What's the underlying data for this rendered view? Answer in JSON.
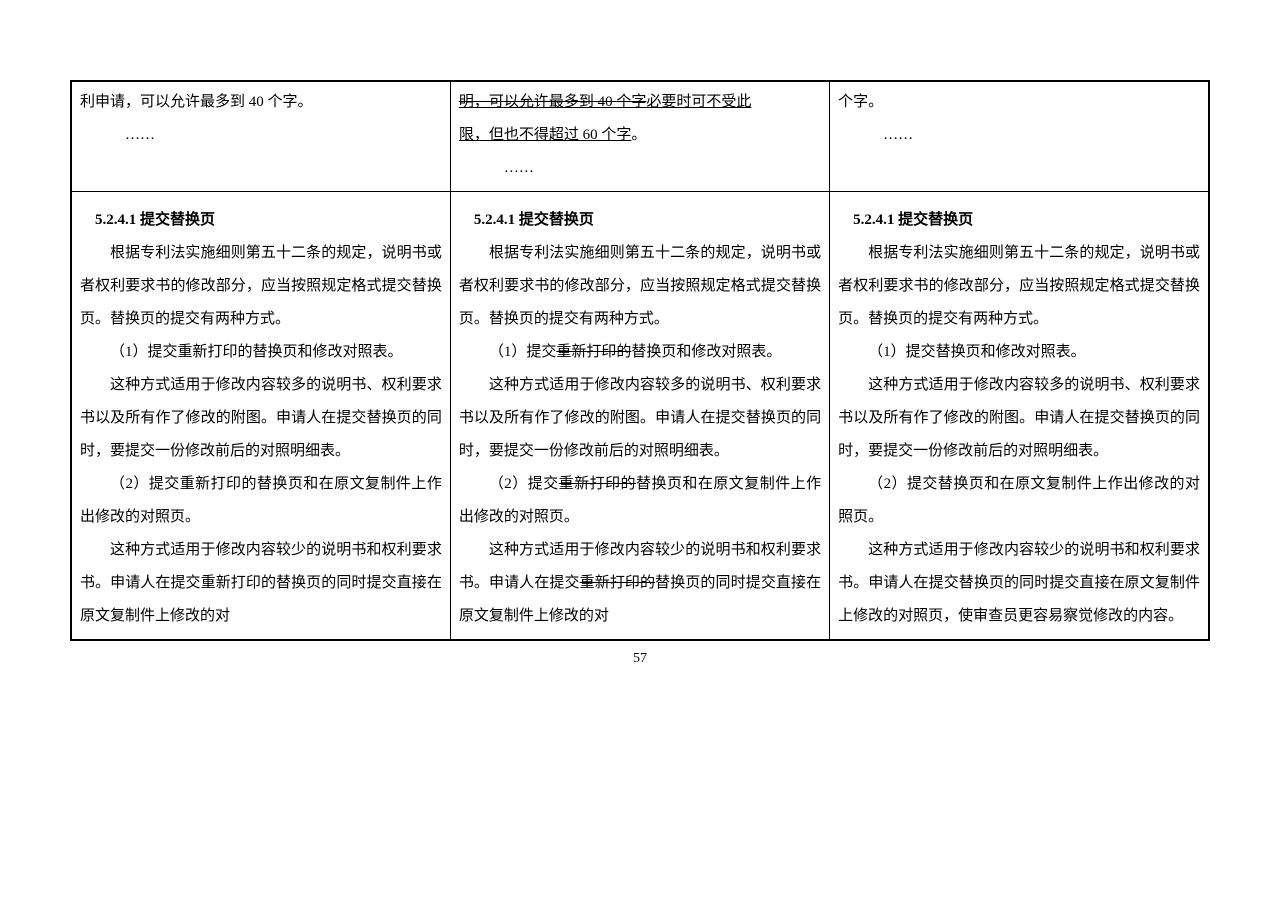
{
  "page_number": "57",
  "row1": {
    "col1": {
      "line1": "利申请，可以允许最多到 40 个字。",
      "dots": "……"
    },
    "col2": {
      "line1_strike_a": "明，可以允许最多到",
      "line1_strike_b": "40",
      "line1_strike_c": "个字",
      "line1_underline": "必要时可不受此",
      "line2_underline": "限，但也不得超过 60 个字",
      "line2_plain": "。",
      "dots": "……"
    },
    "col3": {
      "line1": "个字。",
      "dots": "……"
    }
  },
  "row2": {
    "heading": "5.2.4.1  提交替换页",
    "common_intro": "根据专利法实施细则第五十二条的规定，说明书或者权利要求书的修改部分，应当按照规定格式提交替换页。替换页的提交有两种方式。",
    "col1": {
      "p1": "（1）提交重新打印的替换页和修改对照表。",
      "p2": "这种方式适用于修改内容较多的说明书、权利要求书以及所有作了修改的附图。申请人在提交替换页的同时，要提交一份修改前后的对照明细表。",
      "p3": "（2）提交重新打印的替换页和在原文复制件上作出修改的对照页。",
      "p4": "这种方式适用于修改内容较少的说明书和权利要求书。申请人在提交重新打印的替换页的同时提交直接在原文复制件上修改的对"
    },
    "col2": {
      "p1_a": "（1）提交",
      "p1_strike": "重新打印的",
      "p1_b": "替换页和修改对照表。",
      "p2": "这种方式适用于修改内容较多的说明书、权利要求书以及所有作了修改的附图。申请人在提交替换页的同时，要提交一份修改前后的对照明细表。",
      "p3_a": "（2）提交",
      "p3_strike": "重新打印的",
      "p3_b": "替换页和在原文复制件上作出修改的对照页。",
      "p4_a": "这种方式适用于修改内容较少的说明书和权利要求书。申请人在提交",
      "p4_strike": "重新打印的",
      "p4_b": "替换页的同时提交直接在原文复制件上修改的对"
    },
    "col3": {
      "p1": "（1）提交替换页和修改对照表。",
      "p2": "这种方式适用于修改内容较多的说明书、权利要求书以及所有作了修改的附图。申请人在提交替换页的同时，要提交一份修改前后的对照明细表。",
      "p3": "（2）提交替换页和在原文复制件上作出修改的对照页。",
      "p4": "这种方式适用于修改内容较少的说明书和权利要求书。申请人在提交替换页的同时提交直接在原文复制件上修改的对照页，使审查员更容易察觉修改的内容。"
    }
  }
}
